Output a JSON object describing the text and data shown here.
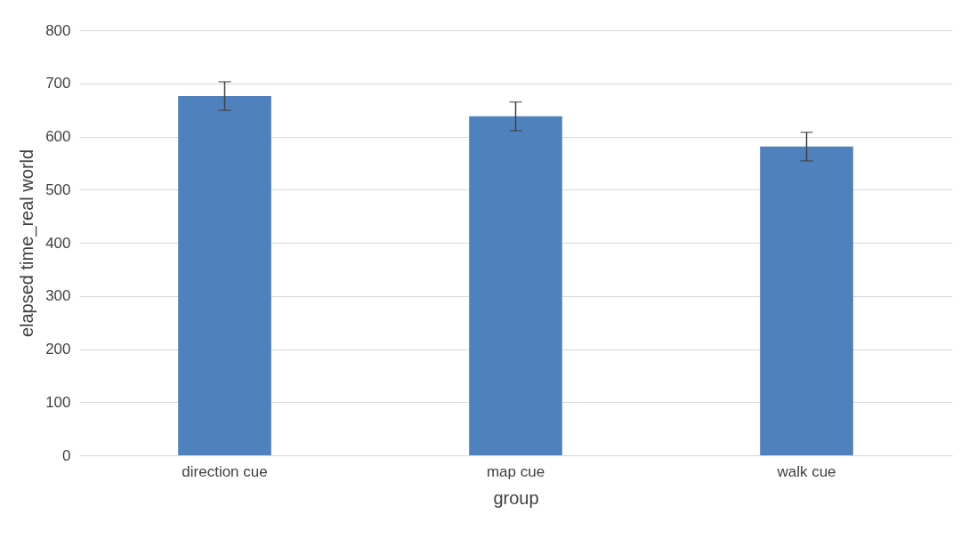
{
  "chart_data": {
    "type": "bar",
    "xlabel": "group",
    "ylabel": "elapsed time_real world",
    "categories": [
      "direction cue",
      "map cue",
      "walk cue"
    ],
    "values": [
      676,
      638,
      581
    ],
    "errors": [
      27,
      27,
      27
    ],
    "color": "#4f81bd",
    "ylim": [
      0,
      800
    ],
    "yticks": [
      0,
      100,
      200,
      300,
      400,
      500,
      600,
      700,
      800
    ],
    "grid": "y"
  }
}
